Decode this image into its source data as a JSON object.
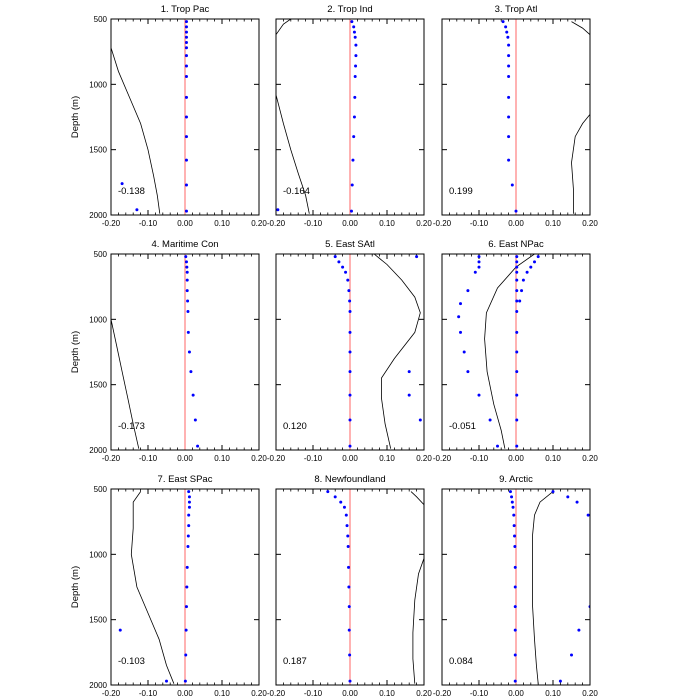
{
  "chart_data": {
    "type": "scatter",
    "ylabel": "Depth (m)",
    "xlim": [
      -0.2,
      0.2
    ],
    "ylim": [
      500,
      2000
    ],
    "y_inverted": true,
    "xticks": [
      -0.2,
      -0.1,
      0.0,
      0.1,
      0.2
    ],
    "xtick_labels": [
      "-0.20",
      "-0.10",
      "0.00",
      "0.10",
      "0.20"
    ],
    "yticks": [
      500,
      1000,
      1500,
      2000
    ],
    "ytick_labels": [
      "500",
      "1000",
      "1500",
      "2000"
    ],
    "colors": {
      "reference_line": "#ff6666",
      "points": "#0000ff",
      "line": "#000000"
    },
    "panels": [
      {
        "title": "1. Trop Pac",
        "correlation": "-0.138",
        "line": [
          [
            -0.2,
            720
          ],
          [
            -0.18,
            900
          ],
          [
            -0.15,
            1100
          ],
          [
            -0.12,
            1300
          ],
          [
            -0.1,
            1500
          ],
          [
            -0.085,
            1700
          ],
          [
            -0.075,
            1850
          ],
          [
            -0.068,
            1990
          ]
        ],
        "points_near_zero": [
          [
            0.004,
            520
          ],
          [
            0.004,
            560
          ],
          [
            0.004,
            600
          ],
          [
            0.004,
            640
          ],
          [
            0.004,
            680
          ],
          [
            0.004,
            720
          ],
          [
            0.004,
            780
          ],
          [
            0.004,
            860
          ],
          [
            0.004,
            940
          ],
          [
            0.004,
            1100
          ],
          [
            0.004,
            1250
          ],
          [
            0.004,
            1400
          ],
          [
            0.004,
            1580
          ],
          [
            0.004,
            1770
          ],
          [
            0.004,
            1970
          ]
        ],
        "points_other": [
          [
            -0.17,
            1760
          ],
          [
            -0.13,
            1960
          ]
        ]
      },
      {
        "title": "2. Trop Ind",
        "correlation": "-0.164",
        "line": [
          [
            -0.2,
            620
          ],
          [
            -0.18,
            540
          ],
          [
            -0.16,
            500
          ],
          [
            null,
            null
          ],
          [
            -0.2,
            1080
          ],
          [
            -0.18,
            1300
          ],
          [
            -0.16,
            1500
          ],
          [
            -0.14,
            1680
          ],
          [
            -0.12,
            1850
          ],
          [
            -0.11,
            1990
          ]
        ],
        "points_near_zero": [
          [
            0.005,
            520
          ],
          [
            0.01,
            560
          ],
          [
            0.012,
            600
          ],
          [
            0.014,
            640
          ],
          [
            0.016,
            700
          ],
          [
            0.016,
            780
          ],
          [
            0.015,
            860
          ],
          [
            0.014,
            940
          ],
          [
            0.013,
            1100
          ],
          [
            0.012,
            1250
          ],
          [
            0.01,
            1400
          ],
          [
            0.008,
            1580
          ],
          [
            0.006,
            1770
          ],
          [
            0.004,
            1970
          ]
        ],
        "points_other": [
          [
            -0.195,
            1960
          ]
        ]
      },
      {
        "title": "3. Trop Atl",
        "correlation": "0.199",
        "line": [
          [
            0.2,
            620
          ],
          [
            0.18,
            570
          ],
          [
            0.15,
            520
          ],
          [
            null,
            null
          ],
          [
            0.2,
            1230
          ],
          [
            0.18,
            1300
          ],
          [
            0.16,
            1400
          ],
          [
            0.15,
            1600
          ],
          [
            0.155,
            1800
          ],
          [
            0.155,
            1990
          ]
        ],
        "points_near_zero": [
          [
            -0.035,
            520
          ],
          [
            -0.028,
            560
          ],
          [
            -0.025,
            600
          ],
          [
            -0.022,
            640
          ],
          [
            -0.02,
            700
          ],
          [
            -0.02,
            780
          ],
          [
            -0.02,
            860
          ],
          [
            -0.02,
            940
          ],
          [
            -0.02,
            1100
          ],
          [
            -0.02,
            1250
          ],
          [
            -0.02,
            1400
          ],
          [
            -0.02,
            1580
          ],
          [
            -0.01,
            1770
          ],
          [
            0.0,
            1970
          ]
        ],
        "points_other": []
      },
      {
        "title": "4. Maritime Con",
        "correlation": "-0.173",
        "line": [
          [
            -0.2,
            1000
          ],
          [
            -0.185,
            1200
          ],
          [
            -0.17,
            1400
          ],
          [
            -0.155,
            1600
          ],
          [
            -0.14,
            1800
          ],
          [
            -0.125,
            1990
          ]
        ],
        "points_near_zero": [
          [
            0.002,
            520
          ],
          [
            0.004,
            560
          ],
          [
            0.005,
            600
          ],
          [
            0.006,
            640
          ],
          [
            0.006,
            700
          ],
          [
            0.006,
            780
          ],
          [
            0.007,
            860
          ],
          [
            0.008,
            940
          ],
          [
            0.009,
            1100
          ],
          [
            0.012,
            1250
          ],
          [
            0.016,
            1400
          ],
          [
            0.022,
            1580
          ],
          [
            0.028,
            1770
          ],
          [
            0.034,
            1970
          ]
        ],
        "points_other": []
      },
      {
        "title": "5. East SAtl",
        "correlation": "0.120",
        "line": [
          [
            0.065,
            500
          ],
          [
            0.1,
            580
          ],
          [
            0.14,
            700
          ],
          [
            0.175,
            830
          ],
          [
            0.19,
            950
          ],
          [
            0.175,
            1100
          ],
          [
            0.12,
            1300
          ],
          [
            0.085,
            1450
          ],
          [
            0.085,
            1600
          ],
          [
            0.095,
            1800
          ],
          [
            0.11,
            1990
          ]
        ],
        "points_near_zero": [
          [
            -0.04,
            520
          ],
          [
            -0.03,
            560
          ],
          [
            -0.02,
            600
          ],
          [
            -0.012,
            640
          ],
          [
            -0.006,
            700
          ],
          [
            -0.003,
            780
          ],
          [
            -0.001,
            860
          ],
          [
            0.0,
            940
          ],
          [
            0.0,
            1100
          ],
          [
            0.0,
            1250
          ],
          [
            0.0,
            1400
          ],
          [
            0.0,
            1580
          ],
          [
            0.0,
            1770
          ],
          [
            0.0,
            1970
          ]
        ],
        "points_other": [
          [
            0.18,
            520
          ],
          [
            0.16,
            1400
          ],
          [
            0.16,
            1580
          ],
          [
            0.19,
            1770
          ]
        ]
      },
      {
        "title": "6. East NPac",
        "correlation": "-0.051",
        "line": [
          [
            0.05,
            500
          ],
          [
            0.0,
            600
          ],
          [
            -0.05,
            760
          ],
          [
            -0.08,
            950
          ],
          [
            -0.085,
            1150
          ],
          [
            -0.078,
            1400
          ],
          [
            -0.06,
            1650
          ],
          [
            -0.04,
            1850
          ],
          [
            -0.03,
            1990
          ]
        ],
        "points_near_zero": [
          [
            0.002,
            520
          ],
          [
            0.002,
            560
          ],
          [
            0.002,
            600
          ],
          [
            0.002,
            640
          ],
          [
            0.002,
            700
          ],
          [
            0.002,
            780
          ],
          [
            0.002,
            860
          ],
          [
            0.002,
            940
          ],
          [
            0.002,
            1100
          ],
          [
            0.002,
            1250
          ],
          [
            0.002,
            1400
          ],
          [
            0.002,
            1580
          ],
          [
            0.002,
            1770
          ],
          [
            0.002,
            1970
          ]
        ],
        "points_other": [
          [
            0.06,
            520
          ],
          [
            0.05,
            560
          ],
          [
            0.04,
            600
          ],
          [
            0.03,
            640
          ],
          [
            0.02,
            700
          ],
          [
            0.015,
            780
          ],
          [
            0.01,
            860
          ],
          [
            -0.1,
            520
          ],
          [
            -0.1,
            560
          ],
          [
            -0.1,
            600
          ],
          [
            -0.11,
            640
          ],
          [
            -0.13,
            780
          ],
          [
            -0.15,
            880
          ],
          [
            -0.155,
            980
          ],
          [
            -0.15,
            1100
          ],
          [
            -0.14,
            1250
          ],
          [
            -0.13,
            1400
          ],
          [
            -0.1,
            1580
          ],
          [
            -0.07,
            1770
          ],
          [
            -0.05,
            1970
          ]
        ]
      },
      {
        "title": "7. East SPac",
        "correlation": "-0.103",
        "line": [
          [
            -0.12,
            520
          ],
          [
            -0.14,
            600
          ],
          [
            -0.14,
            800
          ],
          [
            -0.145,
            1000
          ],
          [
            -0.13,
            1250
          ],
          [
            -0.1,
            1450
          ],
          [
            -0.07,
            1650
          ],
          [
            -0.05,
            1850
          ],
          [
            -0.03,
            1990
          ]
        ],
        "points_near_zero": [
          [
            0.01,
            520
          ],
          [
            0.012,
            560
          ],
          [
            0.012,
            600
          ],
          [
            0.012,
            640
          ],
          [
            0.01,
            700
          ],
          [
            0.01,
            780
          ],
          [
            0.009,
            860
          ],
          [
            0.008,
            940
          ],
          [
            0.006,
            1100
          ],
          [
            0.005,
            1250
          ],
          [
            0.004,
            1400
          ],
          [
            0.003,
            1580
          ],
          [
            0.002,
            1770
          ],
          [
            0.001,
            1970
          ]
        ],
        "points_other": [
          [
            -0.175,
            1580
          ],
          [
            -0.05,
            1970
          ]
        ]
      },
      {
        "title": "8. Newfoundland",
        "correlation": "0.187",
        "line": [
          [
            0.2,
            620
          ],
          [
            0.18,
            560
          ],
          [
            0.165,
            520
          ],
          [
            null,
            null
          ],
          [
            0.2,
            1030
          ],
          [
            0.185,
            1150
          ],
          [
            0.175,
            1350
          ],
          [
            0.17,
            1600
          ],
          [
            0.17,
            1800
          ],
          [
            0.175,
            1990
          ]
        ],
        "points_near_zero": [
          [
            -0.06,
            520
          ],
          [
            -0.04,
            560
          ],
          [
            -0.025,
            600
          ],
          [
            -0.015,
            640
          ],
          [
            -0.01,
            700
          ],
          [
            -0.008,
            780
          ],
          [
            -0.006,
            860
          ],
          [
            -0.005,
            940
          ],
          [
            -0.004,
            1100
          ],
          [
            -0.003,
            1250
          ],
          [
            -0.002,
            1400
          ],
          [
            -0.002,
            1580
          ],
          [
            -0.001,
            1770
          ],
          [
            0.0,
            1970
          ]
        ],
        "points_other": []
      },
      {
        "title": "9. Arctic",
        "correlation": "0.084",
        "line": [
          [
            0.1,
            520
          ],
          [
            0.065,
            600
          ],
          [
            0.05,
            700
          ],
          [
            0.045,
            850
          ],
          [
            0.045,
            1100
          ],
          [
            0.045,
            1400
          ],
          [
            0.05,
            1650
          ],
          [
            0.055,
            1850
          ],
          [
            0.06,
            1990
          ]
        ],
        "points_near_zero": [
          [
            -0.015,
            520
          ],
          [
            -0.012,
            560
          ],
          [
            -0.01,
            600
          ],
          [
            -0.008,
            640
          ],
          [
            -0.006,
            700
          ],
          [
            -0.005,
            780
          ],
          [
            -0.004,
            860
          ],
          [
            -0.003,
            940
          ],
          [
            -0.002,
            1100
          ],
          [
            -0.002,
            1250
          ],
          [
            -0.002,
            1400
          ],
          [
            -0.002,
            1580
          ],
          [
            -0.002,
            1770
          ],
          [
            -0.002,
            1970
          ]
        ],
        "points_other": [
          [
            0.1,
            520
          ],
          [
            0.14,
            560
          ],
          [
            0.165,
            600
          ],
          [
            0.195,
            700
          ],
          [
            0.2,
            1400
          ],
          [
            0.17,
            1580
          ],
          [
            0.15,
            1770
          ],
          [
            0.12,
            1970
          ]
        ]
      }
    ]
  }
}
